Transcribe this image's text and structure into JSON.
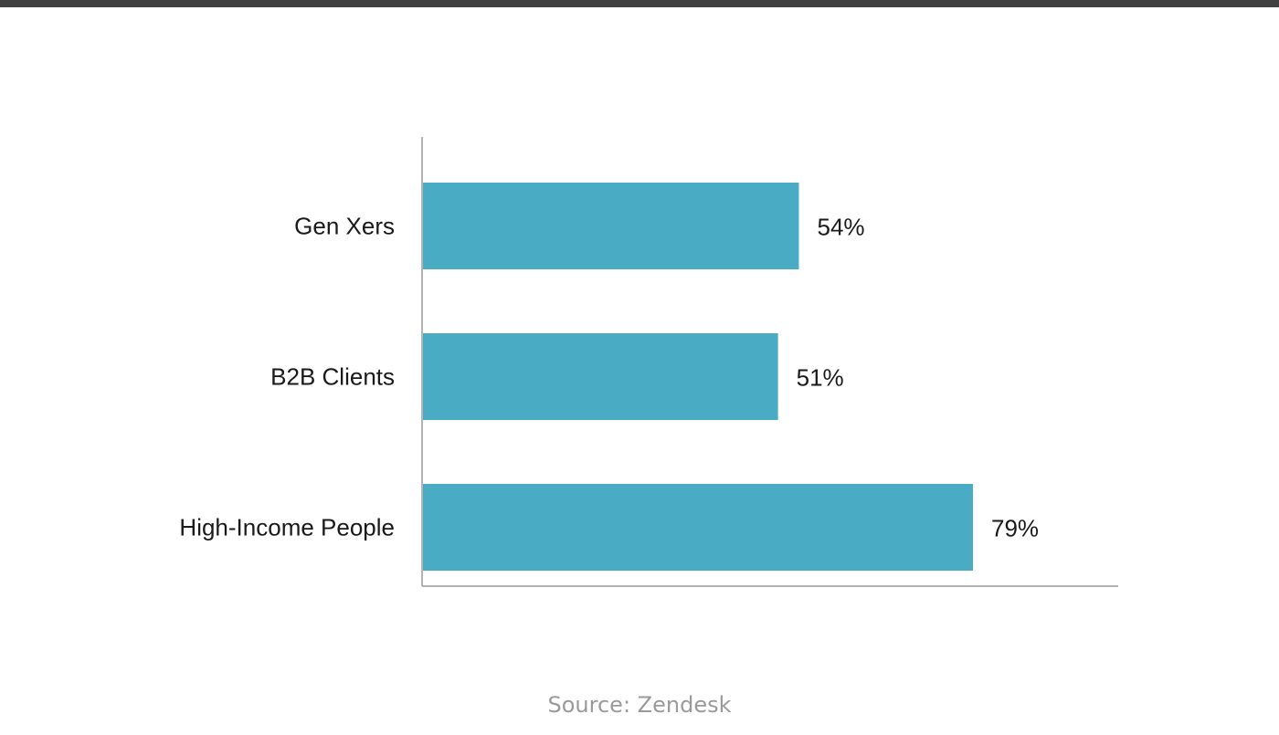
{
  "chart_data": {
    "type": "bar",
    "orientation": "horizontal",
    "categories": [
      "Gen Xers",
      "B2B Clients",
      "High-Income People"
    ],
    "values": [
      54,
      51,
      79
    ],
    "value_labels": [
      "54%",
      "51%",
      "79%"
    ],
    "xlim": [
      0,
      100
    ],
    "grid": false,
    "bar_color": "#4aabc5"
  },
  "source": "Source: Zendesk",
  "colors": {
    "top_bar": "#404040",
    "axis": "#9a9a9a",
    "source_text": "#9a9a9a"
  }
}
